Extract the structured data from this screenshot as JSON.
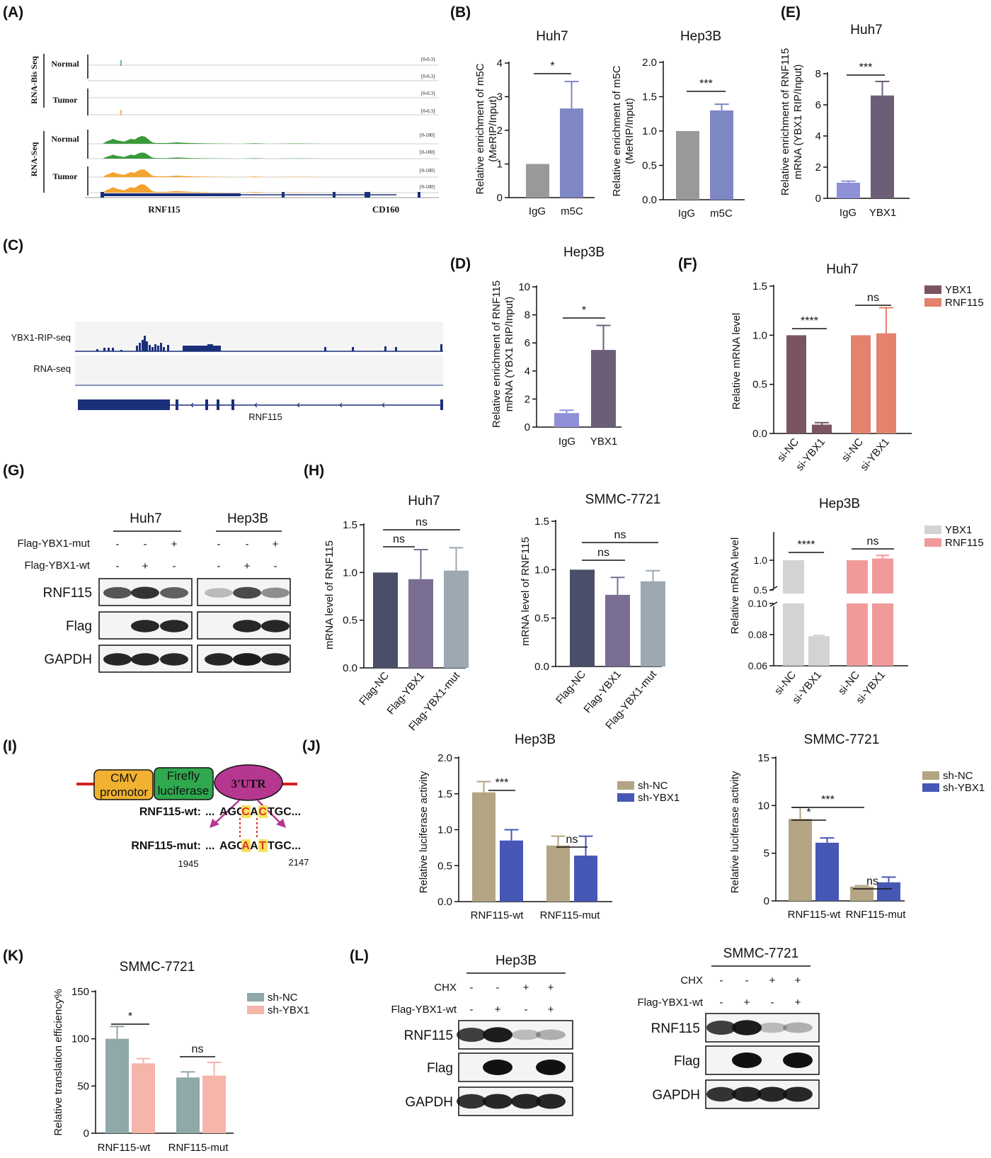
{
  "panels": {
    "A": {
      "label": "(A)",
      "groups": [
        "RNA-Bis Seq",
        "RNA-Seq"
      ],
      "rows": [
        "Normal",
        "Tumor",
        "Normal",
        "Tumor"
      ],
      "ranges_bis": [
        "[0-0.3]",
        "[0-0.3]",
        "[0-0.3]",
        "[0-0.3]"
      ],
      "ranges_seq": [
        "[0-100]",
        "[0-100]",
        "[0-100]",
        "[0-100]"
      ],
      "genes": [
        "RNF115",
        "CD160"
      ],
      "colors": {
        "normal_bis": "#3aa24a",
        "tumor_bis": "#f29a2e",
        "normal": "#3a9a3a",
        "tumor": "#f4a22e",
        "gene": "#1a2f7a"
      }
    },
    "B": {
      "label": "(B)",
      "charts": [
        {
          "title": "Huh7",
          "ylabel": "Relative enrichment of m5C (MeRIP/Input)",
          "categories": [
            "IgG",
            "m5C"
          ],
          "yticks": [
            "0",
            "1",
            "2",
            "3",
            "4"
          ],
          "sig": "*"
        },
        {
          "title": "Hep3B",
          "ylabel": "Relative enrichment of m5C (MeRIP/Input)",
          "categories": [
            "IgG",
            "m5C"
          ],
          "yticks": [
            "0.0",
            "0.5",
            "1.0",
            "1.5",
            "2.0"
          ],
          "sig": "***"
        }
      ]
    },
    "C": {
      "label": "(C)",
      "tracks": [
        "YBX1-RIP-seq",
        "RNA-seq"
      ],
      "ranges": [
        "0-4.0",
        "0-4.0"
      ],
      "gene": "RNF115",
      "color": "#1a2f7a"
    },
    "D": {
      "label": "(D)",
      "title": "Hep3B",
      "ylabel": "Relative enrichment of RNF115 mRNA (YBX1 RIP/Input)",
      "categories": [
        "IgG",
        "YBX1"
      ],
      "yticks": [
        "0",
        "2",
        "4",
        "6",
        "8",
        "10"
      ],
      "sig": "*"
    },
    "E": {
      "label": "(E)",
      "title": "Huh7",
      "ylabel": "Relative enrichment of RNF115 mRNA (YBX1 RIP/Input)",
      "categories": [
        "IgG",
        "YBX1"
      ],
      "yticks": [
        "0",
        "2",
        "4",
        "6",
        "8"
      ],
      "sig": "***"
    },
    "F": {
      "label": "(F)",
      "title": "Huh7",
      "ylabel": "Relative mRNA level",
      "categories": [
        "si-NC",
        "si-YBX1",
        "si-NC",
        "si-YBX1"
      ],
      "yticks": [
        "0.0",
        "0.5",
        "1.0",
        "1.5"
      ],
      "legend": [
        "YBX1",
        "RNF115"
      ],
      "sig": [
        "****",
        "ns"
      ]
    },
    "G": {
      "label": "(G)",
      "cells": [
        "Huh7",
        "Hep3B"
      ],
      "conditions": [
        "Flag-YBX1-mut",
        "Flag-YBX1-wt"
      ],
      "signs_mut": [
        "-",
        "-",
        "+",
        "-",
        "-",
        "+"
      ],
      "signs_wt": [
        "-",
        "+",
        "-",
        "-",
        "+",
        "-"
      ],
      "blots": [
        "RNF115",
        "Flag",
        "GAPDH"
      ]
    },
    "H": {
      "label": "(H)",
      "charts": [
        {
          "title": "Huh7",
          "ylabel": "mRNA level of RNF115",
          "categories": [
            "Flag-NC",
            "Flag-YBX1",
            "Flag-YBX1-mut"
          ],
          "yticks": [
            "0.0",
            "0.5",
            "1.0",
            "1.5"
          ],
          "sig": [
            "ns",
            "ns"
          ]
        },
        {
          "title": "SMMC-7721",
          "ylabel": "mRNA level of RNF115",
          "categories": [
            "Flag-NC",
            "Flag-YBX1",
            "Flag-YBX1-mut"
          ],
          "yticks": [
            "0.0",
            "0.5",
            "1.0",
            "1.5"
          ],
          "sig": [
            "ns",
            "ns"
          ]
        }
      ],
      "hep3b": {
        "title": "Hep3B",
        "ylabel": "Relative mRNA level",
        "categories": [
          "si-NC",
          "si-YBX1",
          "si-NC",
          "si-YBX1"
        ],
        "yticks_top": [
          "0.5",
          "1.0"
        ],
        "yticks_bottom": [
          "0.06",
          "0.08",
          "0.10"
        ],
        "legend": [
          "YBX1",
          "RNF115"
        ],
        "sig": [
          "****",
          "ns"
        ]
      }
    },
    "I": {
      "label": "(I)",
      "boxes": [
        "CMV promotor",
        "Firefly luciferase",
        "3'UTR"
      ],
      "wt_label": "RNF115-wt:",
      "wt_seq": [
        "...",
        "AGC",
        "C",
        "A",
        "C",
        "TGC..."
      ],
      "mut_label": "RNF115-mut:",
      "mut_seq": [
        "...",
        "AGC",
        "A",
        "A",
        "T",
        "TGC..."
      ],
      "positions": [
        "1945",
        "2147"
      ]
    },
    "J": {
      "label": "(J)",
      "charts": [
        {
          "title": "Hep3B",
          "ylabel": "Relative luciferase activity",
          "categories": [
            "RNF115-wt",
            "RNF115-mut"
          ],
          "yticks": [
            "0.0",
            "0.5",
            "1.0",
            "1.5",
            "2.0"
          ],
          "sig": [
            "***",
            "ns"
          ]
        },
        {
          "title": "SMMC-7721",
          "ylabel": "Relative luciferase activity",
          "categories": [
            "RNF115-wt",
            "RNF115-mut"
          ],
          "yticks": [
            "0",
            "5",
            "10",
            "15"
          ],
          "sig": [
            "*",
            "***",
            "ns"
          ]
        }
      ],
      "legend": [
        "sh-NC",
        "sh-YBX1"
      ]
    },
    "K": {
      "label": "(K)",
      "title": "SMMC-7721",
      "ylabel": "Relative translation efficiency%",
      "categories": [
        "RNF115-wt",
        "RNF115-mut"
      ],
      "yticks": [
        "0",
        "50",
        "100",
        "150"
      ],
      "legend": [
        "sh-NC",
        "sh-YBX1"
      ],
      "sig": [
        "*",
        "ns"
      ]
    },
    "L": {
      "label": "(L)",
      "cells": [
        "Hep3B",
        "SMMC-7721"
      ],
      "conditions": [
        "CHX",
        "Flag-YBX1-wt"
      ],
      "signs_chx": [
        "-",
        "-",
        "+",
        "+"
      ],
      "signs_wt": [
        "-",
        "+",
        "-",
        "+"
      ],
      "blots": [
        "RNF115",
        "Flag",
        "GAPDH"
      ]
    }
  },
  "chart_data": [
    {
      "panel": "B",
      "type": "bar",
      "title": "Huh7",
      "ylabel": "Relative enrichment of m5C (MeRIP/Input)",
      "categories": [
        "IgG",
        "m5C"
      ],
      "values": [
        1.0,
        2.65
      ],
      "errors": [
        0,
        0.8
      ],
      "ylim": [
        0,
        4
      ],
      "colors": [
        "#999999",
        "#7f86c4"
      ]
    },
    {
      "panel": "B",
      "type": "bar",
      "title": "Hep3B",
      "ylabel": "Relative enrichment of m5C (MeRIP/Input)",
      "categories": [
        "IgG",
        "m5C"
      ],
      "values": [
        1.0,
        1.3
      ],
      "errors": [
        0,
        0.09
      ],
      "ylim": [
        0,
        2
      ],
      "colors": [
        "#999999",
        "#7f86c4"
      ]
    },
    {
      "panel": "D",
      "type": "bar",
      "title": "Hep3B",
      "ylabel": "Relative enrichment of RNF115 mRNA (YBX1 RIP/Input)",
      "categories": [
        "IgG",
        "YBX1"
      ],
      "values": [
        1.0,
        5.5
      ],
      "errors": [
        0.2,
        1.75
      ],
      "ylim": [
        0,
        10
      ],
      "colors": [
        "#8f91d8",
        "#6d5e78"
      ]
    },
    {
      "panel": "E",
      "type": "bar",
      "title": "Huh7",
      "ylabel": "Relative enrichment of RNF115 mRNA (YBX1 RIP/Input)",
      "categories": [
        "IgG",
        "YBX1"
      ],
      "values": [
        1.0,
        6.6
      ],
      "errors": [
        0.1,
        0.9
      ],
      "ylim": [
        0,
        8
      ],
      "colors": [
        "#8f91d8",
        "#6d5e78"
      ]
    },
    {
      "panel": "F",
      "type": "bar",
      "title": "Huh7",
      "ylabel": "Relative mRNA level",
      "categories": [
        "si-NC",
        "si-YBX1",
        "si-NC",
        "si-YBX1"
      ],
      "values": [
        1.0,
        0.09,
        1.0,
        1.02
      ],
      "errors": [
        0,
        0.02,
        0,
        0.26
      ],
      "ylim": [
        0,
        1.5
      ],
      "series": [
        {
          "name": "YBX1",
          "color": "#7a5560"
        },
        {
          "name": "RNF115",
          "color": "#e4826e"
        }
      ]
    },
    {
      "panel": "H",
      "type": "bar",
      "title": "Huh7",
      "ylabel": "mRNA level of RNF115",
      "categories": [
        "Flag-NC",
        "Flag-YBX1",
        "Flag-YBX1-mut"
      ],
      "values": [
        1.0,
        0.93,
        1.02
      ],
      "errors": [
        0,
        0.31,
        0.24
      ],
      "ylim": [
        0,
        1.5
      ],
      "colors": [
        "#4a4e68",
        "#7a6e92",
        "#9ca8b2"
      ]
    },
    {
      "panel": "H",
      "type": "bar",
      "title": "SMMC-7721",
      "ylabel": "mRNA level of RNF115",
      "categories": [
        "Flag-NC",
        "Flag-YBX1",
        "Flag-YBX1-mut"
      ],
      "values": [
        1.0,
        0.74,
        0.88
      ],
      "errors": [
        0,
        0.18,
        0.11
      ],
      "ylim": [
        0,
        1.5
      ],
      "colors": [
        "#4a4e68",
        "#7a6e92",
        "#9ca8b2"
      ]
    },
    {
      "panel": "H",
      "type": "bar",
      "title": "Hep3B",
      "ylabel": "Relative mRNA level",
      "categories": [
        "si-NC",
        "si-YBX1",
        "si-NC",
        "si-YBX1"
      ],
      "values": [
        1.0,
        0.079,
        1.0,
        1.03
      ],
      "errors": [
        0,
        0.0005,
        0,
        0.05
      ],
      "series": [
        {
          "name": "YBX1",
          "color": "#d3d3d3"
        },
        {
          "name": "RNF115",
          "color": "#f09b9a"
        }
      ]
    },
    {
      "panel": "J",
      "type": "bar",
      "title": "Hep3B",
      "ylabel": "Relative luciferase activity",
      "categories": [
        "RNF115-wt",
        "RNF115-mut"
      ],
      "ylim": [
        0,
        2.0
      ],
      "series": [
        {
          "name": "sh-NC",
          "values": [
            1.52,
            0.78
          ],
          "errors": [
            0.15,
            0.13
          ],
          "color": "#b3a583"
        },
        {
          "name": "sh-YBX1",
          "values": [
            0.85,
            0.64
          ],
          "errors": [
            0.15,
            0.27
          ],
          "color": "#4657b5"
        }
      ]
    },
    {
      "panel": "J",
      "type": "bar",
      "title": "SMMC-7721",
      "ylabel": "Relative luciferase activity",
      "categories": [
        "RNF115-wt",
        "RNF115-mut"
      ],
      "ylim": [
        0,
        15
      ],
      "series": [
        {
          "name": "sh-NC",
          "values": [
            8.6,
            1.5
          ],
          "errors": [
            1.2,
            0.1
          ],
          "color": "#b3a583"
        },
        {
          "name": "sh-YBX1",
          "values": [
            6.1,
            1.95
          ],
          "errors": [
            0.5,
            0.55
          ],
          "color": "#4657b5"
        }
      ]
    },
    {
      "panel": "K",
      "type": "bar",
      "title": "SMMC-7721",
      "ylabel": "Relative translation efficiency%",
      "categories": [
        "RNF115-wt",
        "RNF115-mut"
      ],
      "ylim": [
        0,
        150
      ],
      "series": [
        {
          "name": "sh-NC",
          "values": [
            100,
            59
          ],
          "errors": [
            13,
            6
          ],
          "color": "#8fa8a8"
        },
        {
          "name": "sh-YBX1",
          "values": [
            74,
            61
          ],
          "errors": [
            5,
            14
          ],
          "color": "#f5b5aa"
        }
      ]
    }
  ]
}
